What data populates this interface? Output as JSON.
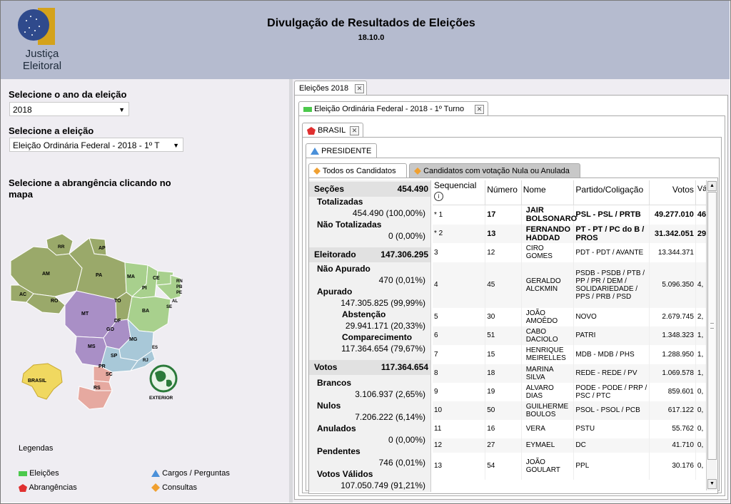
{
  "header": {
    "title": "Divulgação de Resultados de Eleições",
    "version": "18.10.0",
    "logo_line1": "Justiça",
    "logo_line2": "Eleitoral"
  },
  "left": {
    "year_label": "Selecione o ano da eleição",
    "year_value": "2018",
    "election_label": "Selecione a eleição",
    "election_value": "Eleição Ordinária Federal - 2018 - 1º T",
    "scope_label_1": "Selecione a abrangência clicando no",
    "scope_label_2": "mapa",
    "map_states": [
      "RR",
      "AP",
      "AM",
      "PA",
      "MA",
      "CE",
      "RN",
      "PB",
      "PE",
      "AL",
      "SE",
      "AC",
      "RO",
      "TO",
      "PI",
      "BA",
      "MT",
      "DF",
      "GO",
      "MG",
      "ES",
      "RJ",
      "MS",
      "SP",
      "PR",
      "SC",
      "RS"
    ],
    "brasil_label": "BRASIL",
    "exterior_label": "EXTERIOR",
    "legend_title": "Legendas",
    "legend": {
      "eleicoes": "Eleições",
      "abrangencias": "Abrangências",
      "cargos": "Cargos / Perguntas",
      "consultas": "Consultas"
    }
  },
  "tabs": {
    "t1": "Eleições 2018",
    "t2": "Eleição Ordinária Federal - 2018 - 1º Turno",
    "t3": "BRASIL",
    "t4": "PRESIDENTE",
    "t5": "Todos os Candidatos",
    "t6": "Candidatos com votação Nula ou Anulada"
  },
  "stats": {
    "secoes_label": "Seções",
    "secoes_value": "454.490",
    "totalizadas_label": "Totalizadas",
    "totalizadas_value": "454.490 (100,00%)",
    "nao_totalizadas_label": "Não Totalizadas",
    "nao_totalizadas_value": "0 (0,00%)",
    "eleitorado_label": "Eleitorado",
    "eleitorado_value": "147.306.295",
    "nao_apurado_label": "Não Apurado",
    "nao_apurado_value": "470 (0,01%)",
    "apurado_label": "Apurado",
    "apurado_value": "147.305.825 (99,99%)",
    "abstencao_label": "Abstenção",
    "abstencao_value": "29.941.171 (20,33%)",
    "comparecimento_label": "Comparecimento",
    "comparecimento_value": "117.364.654 (79,67%)",
    "votos_label": "Votos",
    "votos_value": "117.364.654",
    "brancos_label": "Brancos",
    "brancos_value": "3.106.937 (2,65%)",
    "nulos_label": "Nulos",
    "nulos_value": "7.206.222 (6,14%)",
    "anulados_label": "Anulados",
    "anulados_value": "0 (0,00%)",
    "pendentes_label": "Pendentes",
    "pendentes_value": "746 (0,01%)",
    "validos_label": "Votos Válidos",
    "validos_value": "107.050.749 (91,21%)"
  },
  "table": {
    "columns": [
      "Sequencial",
      "Número",
      "Nome",
      "Partido/Coligação",
      "Votos",
      "Vá"
    ],
    "info_icon": "i",
    "rows": [
      {
        "seq": "* 1",
        "num": "17",
        "nome": "JAIR BOLSONARO",
        "partido": "PSL - PSL / PRTB",
        "votos": "49.277.010",
        "val": "46"
      },
      {
        "seq": "* 2",
        "num": "13",
        "nome": "FERNANDO HADDAD",
        "partido": "PT - PT / PC do B / PROS",
        "votos": "31.342.051",
        "val": "29"
      },
      {
        "seq": "3",
        "num": "12",
        "nome": "CIRO GOMES",
        "partido": "PDT - PDT / AVANTE",
        "votos": "13.344.371",
        "val": ""
      },
      {
        "seq": "4",
        "num": "45",
        "nome": "GERALDO ALCKMIN",
        "partido": "PSDB - PSDB / PTB / PP / PR / DEM / SOLIDARIEDADE / PPS / PRB / PSD",
        "votos": "5.096.350",
        "val": "4,"
      },
      {
        "seq": "5",
        "num": "30",
        "nome": "JOÃO AMOÊDO",
        "partido": "NOVO",
        "votos": "2.679.745",
        "val": "2,"
      },
      {
        "seq": "6",
        "num": "51",
        "nome": "CABO DACIOLO",
        "partido": "PATRI",
        "votos": "1.348.323",
        "val": "1,"
      },
      {
        "seq": "7",
        "num": "15",
        "nome": "HENRIQUE MEIRELLES",
        "partido": "MDB - MDB / PHS",
        "votos": "1.288.950",
        "val": "1,"
      },
      {
        "seq": "8",
        "num": "18",
        "nome": "MARINA SILVA",
        "partido": "REDE - REDE / PV",
        "votos": "1.069.578",
        "val": "1,"
      },
      {
        "seq": "9",
        "num": "19",
        "nome": "ALVARO DIAS",
        "partido": "PODE - PODE / PRP / PSC / PTC",
        "votos": "859.601",
        "val": "0,"
      },
      {
        "seq": "10",
        "num": "50",
        "nome": "GUILHERME BOULOS",
        "partido": "PSOL - PSOL / PCB",
        "votos": "617.122",
        "val": "0,"
      },
      {
        "seq": "11",
        "num": "16",
        "nome": "VERA",
        "partido": "PSTU",
        "votos": "55.762",
        "val": "0,"
      },
      {
        "seq": "12",
        "num": "27",
        "nome": "EYMAEL",
        "partido": "DC",
        "votos": "41.710",
        "val": "0,"
      },
      {
        "seq": "13",
        "num": "54",
        "nome": "JOÃO GOULART",
        "partido": "PPL",
        "votos": "30.176",
        "val": "0,"
      }
    ]
  },
  "colors": {
    "header_bg": "#b5bbcf",
    "panel_bg": "#efedf2",
    "legend_eleicoes": "#4cc94c",
    "legend_abrangencias": "#e03030",
    "legend_cargos": "#4a90d9",
    "legend_consultas": "#f0a030"
  }
}
